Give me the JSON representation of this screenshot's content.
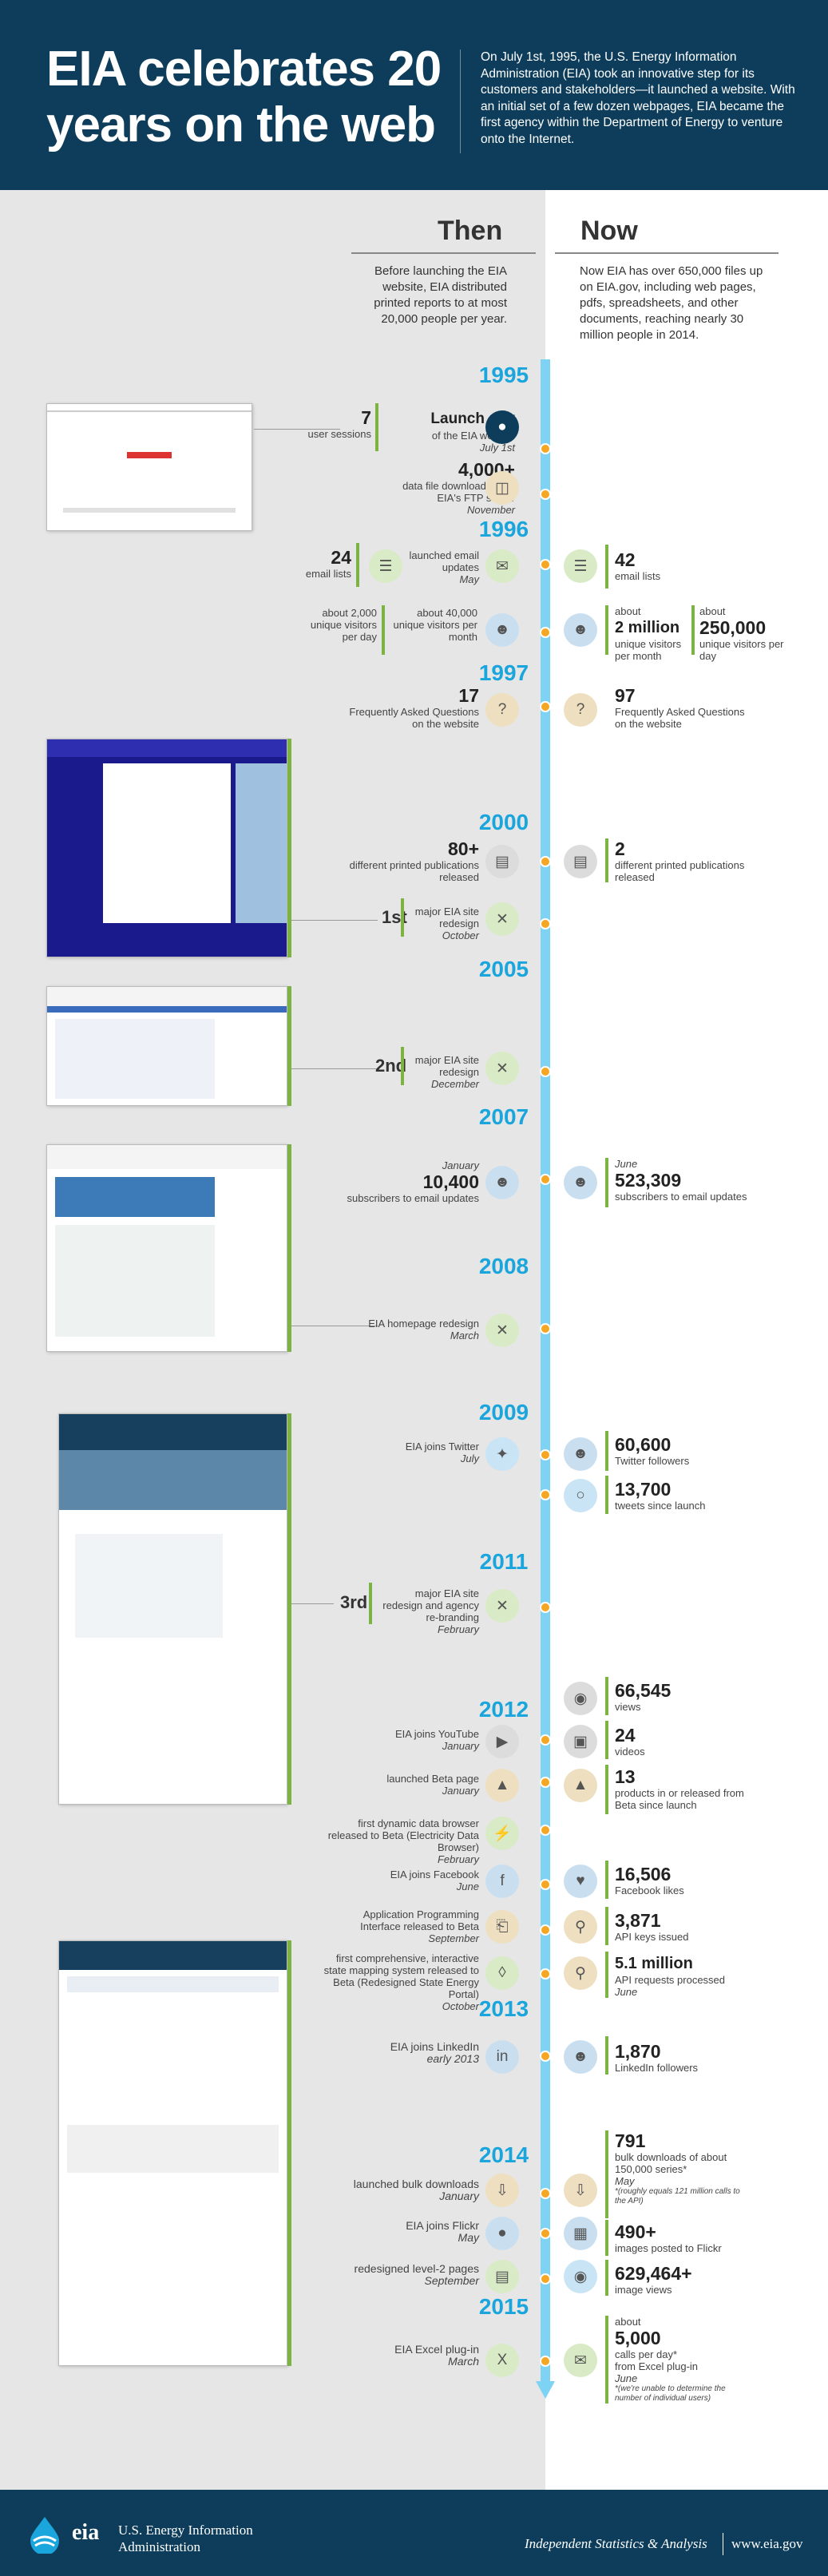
{
  "header": {
    "title": "EIA celebrates 20 years on the web",
    "intro": "On July 1st, 1995, the U.S. Energy Information Administration (EIA) took an innovative step for its customers and stakeholders—it launched a website. With an initial set of a few dozen webpages, EIA became the first agency within the Department of Energy to venture onto the Internet."
  },
  "columns": {
    "then": "Then",
    "now": "Now",
    "then_desc": "Before launching the EIA website, EIA distributed printed reports to at most 20,000 people per year.",
    "now_desc": "Now EIA has over 650,000 files up on EIA.gov, including web pages, pdfs, spreadsheets, and other documents, reaching nearly 30 million people in 2014."
  },
  "years": [
    "1995",
    "1996",
    "1997",
    "2000",
    "2005",
    "2007",
    "2008",
    "2009",
    "2011",
    "2012",
    "2013",
    "2014",
    "2015"
  ],
  "then_items": [
    {
      "num": "7",
      "label": "user sessions",
      "text": "Launch day",
      "sub": "of the EIA website",
      "date": "July 1st"
    },
    {
      "num": "4,000+",
      "label": "data file downloads from EIA's FTP server",
      "date": "November"
    },
    {
      "num": "24",
      "label": "email lists",
      "text": "launched email updates",
      "date": "May"
    },
    {
      "num": "about 2,000",
      "label": "unique visitors per day"
    },
    {
      "num": "about 40,000",
      "label": "unique visitors per month"
    },
    {
      "num": "17",
      "label": "Frequently Asked Questions on the website"
    },
    {
      "num": "80+",
      "label": "different printed publications released"
    },
    {
      "num": "1st",
      "label": "major EIA site redesign",
      "date": "October"
    },
    {
      "num": "2nd",
      "label": "major EIA site redesign",
      "date": "December"
    },
    {
      "num": "10,400",
      "label": "subscribers to email updates",
      "date": "January"
    },
    {
      "label": "EIA homepage redesign",
      "date": "March"
    },
    {
      "label": "EIA joins Twitter",
      "date": "July"
    },
    {
      "num": "3rd",
      "label": "major EIA site redesign and agency re-branding",
      "date": "February"
    },
    {
      "label": "EIA joins YouTube",
      "date": "January"
    },
    {
      "label": "launched Beta page",
      "date": "January"
    },
    {
      "label": "first dynamic data browser released to Beta (Electricity Data Browser)",
      "date": "February"
    },
    {
      "label": "EIA joins Facebook",
      "date": "June"
    },
    {
      "label": "Application Programming Interface released to Beta",
      "date": "September"
    },
    {
      "label": "first comprehensive, interactive state mapping system released to Beta (Redesigned State Energy Portal)",
      "date": "October"
    },
    {
      "label": "EIA joins LinkedIn",
      "date": "early 2013"
    },
    {
      "label": "launched bulk downloads",
      "date": "January"
    },
    {
      "label": "EIA joins Flickr",
      "date": "May"
    },
    {
      "label": "redesigned level-2 pages",
      "date": "September"
    },
    {
      "label": "EIA Excel plug-in",
      "date": "March"
    }
  ],
  "now_items": [
    {
      "num": "42",
      "label": "email lists"
    },
    {
      "pre": "about",
      "num": "2 million",
      "label": "unique visitors per month"
    },
    {
      "pre": "about",
      "num": "250,000",
      "label": "unique visitors per day"
    },
    {
      "num": "97",
      "label": "Frequently Asked Questions on the website"
    },
    {
      "num": "2",
      "label": "different printed publications released"
    },
    {
      "num": "523,309",
      "label": "subscribers to email updates",
      "date": "June"
    },
    {
      "num": "60,600",
      "label": "Twitter followers"
    },
    {
      "num": "13,700",
      "label": "tweets since launch"
    },
    {
      "num": "66,545",
      "label": "views"
    },
    {
      "num": "24",
      "label": "videos"
    },
    {
      "num": "13",
      "label": "products in or released from Beta since launch"
    },
    {
      "num": "16,506",
      "label": "Facebook likes"
    },
    {
      "num": "3,871",
      "label": "API keys issued"
    },
    {
      "num": "5.1 million",
      "label": "API requests processed",
      "date": "June"
    },
    {
      "num": "1,870",
      "label": "LinkedIn followers"
    },
    {
      "num": "791",
      "label": "bulk downloads of about 150,000 series*",
      "date": "May",
      "note": "*(roughly equals 121 million calls to the API)"
    },
    {
      "num": "490+",
      "label": "images posted to Flickr"
    },
    {
      "num": "629,464+",
      "label": "image views"
    },
    {
      "pre": "about",
      "num": "5,000",
      "label": "calls per day*",
      "sub": "from Excel plug-in",
      "date": "June",
      "note": "*(we're unable to determine the number of individual users)"
    }
  ],
  "footer": {
    "logo": "eia",
    "agency": "U.S. Energy Information Administration",
    "tagline": "Independent Statistics & Analysis",
    "url": "www.eia.gov"
  },
  "icons": [
    "launch-icon",
    "ftp-icon",
    "email-list-icon",
    "visitors-icon",
    "faq-icon",
    "publications-icon",
    "redesign-icon",
    "twitter-icon",
    "tweets-icon",
    "eye-icon",
    "video-icon",
    "beta-icon",
    "browser-icon",
    "facebook-icon",
    "api-icon",
    "map-icon",
    "linkedin-icon",
    "download-icon",
    "flickr-icon",
    "excel-icon"
  ],
  "colors": {
    "navy": "#0d3d5a",
    "timeline": "#7ed3f5",
    "year": "#1ba5dd",
    "accent": "#7cb342",
    "dot": "#f5a623"
  }
}
